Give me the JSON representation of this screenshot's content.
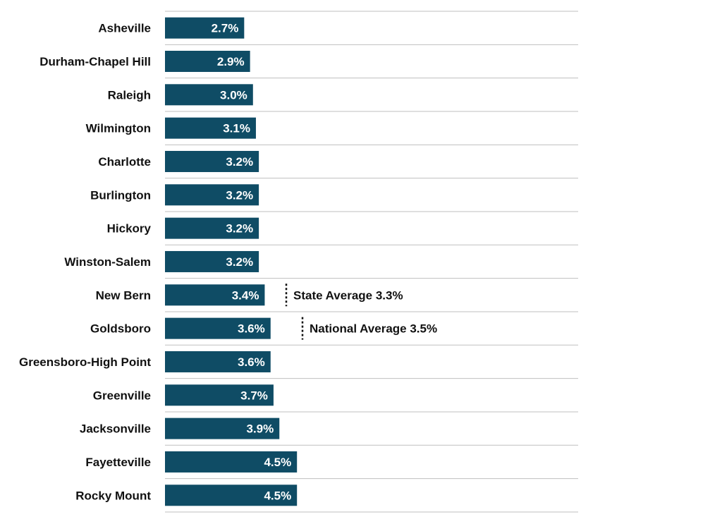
{
  "chart_data": {
    "type": "bar",
    "orientation": "horizontal",
    "categories": [
      "Asheville",
      "Durham-Chapel Hill",
      "Raleigh",
      "Wilmington",
      "Charlotte",
      "Burlington",
      "Hickory",
      "Winston-Salem",
      "New Bern",
      "Goldsboro",
      "Greensboro-High Point",
      "Greenville",
      "Jacksonville",
      "Fayetteville",
      "Rocky Mount"
    ],
    "values": [
      2.7,
      2.9,
      3.0,
      3.1,
      3.2,
      3.2,
      3.2,
      3.2,
      3.4,
      3.6,
      3.6,
      3.7,
      3.9,
      4.5,
      4.5
    ],
    "value_labels": [
      "2.7%",
      "2.9%",
      "3.0%",
      "3.1%",
      "3.2%",
      "3.2%",
      "3.2%",
      "3.2%",
      "3.4%",
      "3.6%",
      "3.6%",
      "3.7%",
      "3.9%",
      "4.5%",
      "4.5%"
    ],
    "reference_lines": [
      {
        "label": "State Average 3.3%",
        "value": 3.3
      },
      {
        "label": "National Average 3.5%",
        "value": 3.5
      }
    ],
    "xlim": [
      0,
      14
    ],
    "bar_color": "#0f4c65",
    "gridlines": "horizontal separators",
    "title": "",
    "xlabel": "",
    "ylabel": ""
  }
}
